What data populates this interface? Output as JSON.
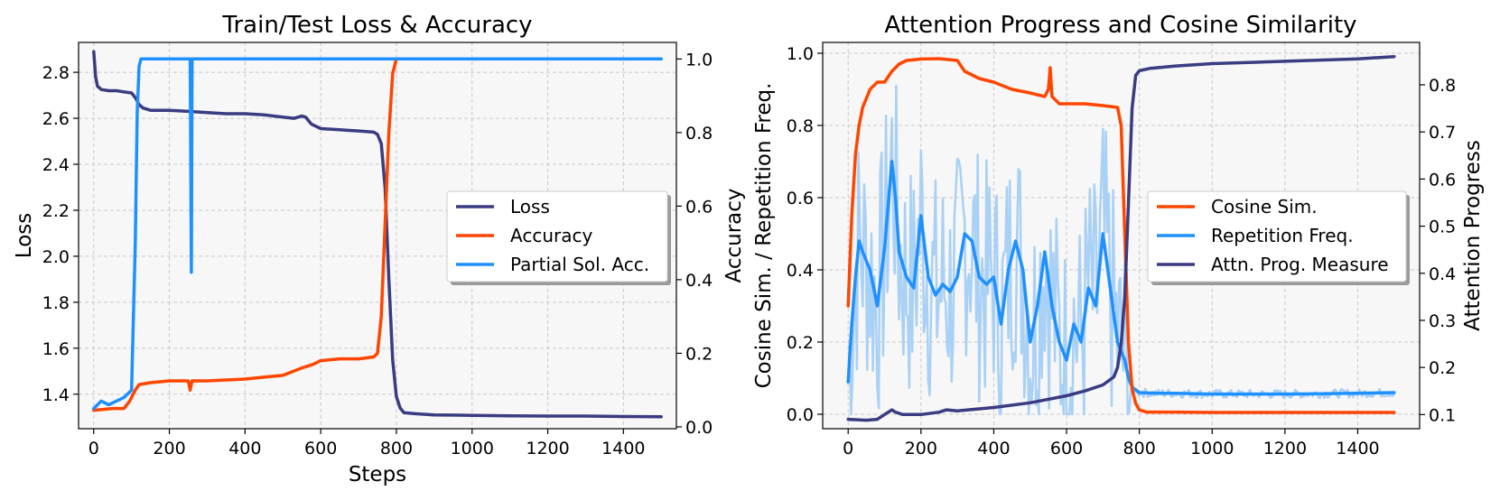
{
  "colors": {
    "loss": "#3b3b82",
    "accuracy": "#ff4500",
    "partial": "#1e90ff",
    "repetition_light": "#a9d0f5",
    "attn": "#3b3b82",
    "panel_bg": "#f7f7f7"
  },
  "chart_data": [
    {
      "type": "line",
      "title": "Train/Test Loss & Accuracy",
      "xlabel": "Steps",
      "ylabel": "Loss",
      "ylabel_right": "Accuracy",
      "xlim": [
        -40,
        1540
      ],
      "ylim": [
        1.25,
        2.93
      ],
      "ylim_right": [
        -0.005,
        1.045
      ],
      "xticks": [
        0,
        200,
        400,
        600,
        800,
        1000,
        1200,
        1400
      ],
      "yticks": [
        1.4,
        1.6,
        1.8,
        2.0,
        2.2,
        2.4,
        2.6,
        2.8
      ],
      "yticks_right": [
        0.0,
        0.2,
        0.4,
        0.6,
        0.8,
        1.0
      ],
      "grid": true,
      "legend": "center-right",
      "series": [
        {
          "name": "Loss",
          "axis": "left",
          "color_key": "loss",
          "x": [
            0,
            5,
            10,
            20,
            40,
            60,
            80,
            100,
            110,
            120,
            130,
            150,
            200,
            250,
            300,
            350,
            400,
            450,
            500,
            530,
            550,
            560,
            575,
            600,
            650,
            700,
            740,
            750,
            760,
            770,
            780,
            790,
            800,
            810,
            820,
            850,
            900,
            1000,
            1100,
            1200,
            1300,
            1400,
            1500
          ],
          "values": [
            2.89,
            2.78,
            2.74,
            2.725,
            2.72,
            2.72,
            2.715,
            2.71,
            2.69,
            2.66,
            2.645,
            2.635,
            2.635,
            2.63,
            2.625,
            2.62,
            2.62,
            2.615,
            2.605,
            2.6,
            2.61,
            2.605,
            2.575,
            2.555,
            2.55,
            2.545,
            2.54,
            2.53,
            2.49,
            2.3,
            1.9,
            1.55,
            1.39,
            1.34,
            1.32,
            1.315,
            1.31,
            1.308,
            1.306,
            1.305,
            1.305,
            1.303,
            1.302
          ]
        },
        {
          "name": "Accuracy",
          "axis": "right",
          "color_key": "accuracy",
          "x": [
            0,
            50,
            80,
            95,
            110,
            120,
            150,
            200,
            250,
            255,
            260,
            300,
            400,
            450,
            500,
            550,
            580,
            600,
            650,
            700,
            740,
            750,
            760,
            770,
            780,
            790,
            800,
            805
          ],
          "values": [
            0.045,
            0.05,
            0.05,
            0.07,
            0.1,
            0.115,
            0.12,
            0.125,
            0.125,
            0.1,
            0.125,
            0.125,
            0.13,
            0.135,
            0.14,
            0.16,
            0.17,
            0.18,
            0.185,
            0.185,
            0.19,
            0.2,
            0.3,
            0.55,
            0.8,
            0.96,
            1.0,
            1.0
          ]
        },
        {
          "name": "Partial Sol. Acc.",
          "axis": "right",
          "color_key": "partial",
          "x": [
            0,
            20,
            40,
            60,
            80,
            100,
            110,
            115,
            120,
            125,
            250,
            255,
            258,
            260,
            265,
            500,
            1000,
            1500
          ],
          "values": [
            0.05,
            0.07,
            0.06,
            0.07,
            0.08,
            0.1,
            0.5,
            0.85,
            0.98,
            1.0,
            1.0,
            1.0,
            0.42,
            1.0,
            1.0,
            1.0,
            1.0,
            1.0
          ]
        }
      ]
    },
    {
      "type": "line",
      "title": "Attention Progress and Cosine Similarity",
      "xlabel": "",
      "ylabel": "Cosine Sim. / Repetition Freq.",
      "ylabel_right": "Attention Progress",
      "xlim": [
        -70,
        1570
      ],
      "ylim": [
        -0.04,
        1.03
      ],
      "ylim_right": [
        0.07,
        0.89
      ],
      "xticks": [
        0,
        200,
        400,
        600,
        800,
        1000,
        1200,
        1400
      ],
      "yticks": [
        0.0,
        0.2,
        0.4,
        0.6,
        0.8,
        1.0
      ],
      "yticks_right": [
        0.1,
        0.2,
        0.3,
        0.4,
        0.5,
        0.6,
        0.7,
        0.8
      ],
      "grid": true,
      "legend": "center-right",
      "series": [
        {
          "name": "Cosine Sim.",
          "axis": "left",
          "color_key": "accuracy",
          "x": [
            0,
            10,
            20,
            30,
            40,
            60,
            80,
            100,
            120,
            140,
            160,
            180,
            200,
            250,
            300,
            320,
            340,
            360,
            400,
            450,
            500,
            540,
            550,
            555,
            560,
            570,
            580,
            600,
            650,
            700,
            740,
            750,
            760,
            770,
            780,
            790,
            800,
            820,
            900,
            1000,
            1100,
            1200,
            1300,
            1400,
            1500
          ],
          "values": [
            0.3,
            0.55,
            0.72,
            0.8,
            0.85,
            0.9,
            0.92,
            0.92,
            0.95,
            0.97,
            0.98,
            0.982,
            0.984,
            0.985,
            0.98,
            0.95,
            0.94,
            0.93,
            0.92,
            0.9,
            0.89,
            0.88,
            0.9,
            0.96,
            0.88,
            0.87,
            0.86,
            0.86,
            0.86,
            0.855,
            0.85,
            0.8,
            0.5,
            0.2,
            0.07,
            0.03,
            0.012,
            0.006,
            0.006,
            0.005,
            0.005,
            0.005,
            0.005,
            0.005,
            0.005
          ]
        },
        {
          "name": "Repetition Freq.",
          "axis": "left",
          "color_key": "partial",
          "x": [
            0,
            10,
            20,
            30,
            40,
            60,
            80,
            100,
            120,
            130,
            140,
            160,
            180,
            200,
            220,
            240,
            260,
            280,
            300,
            320,
            340,
            360,
            380,
            400,
            420,
            440,
            460,
            480,
            500,
            520,
            540,
            560,
            580,
            600,
            620,
            640,
            660,
            680,
            700,
            720,
            740,
            760,
            770,
            780,
            800,
            850,
            900,
            1000,
            1100,
            1200,
            1300,
            1400,
            1500
          ],
          "values": [
            0.09,
            0.25,
            0.38,
            0.48,
            0.45,
            0.4,
            0.3,
            0.46,
            0.7,
            0.6,
            0.45,
            0.38,
            0.35,
            0.55,
            0.38,
            0.33,
            0.36,
            0.34,
            0.38,
            0.5,
            0.48,
            0.38,
            0.36,
            0.38,
            0.25,
            0.4,
            0.48,
            0.4,
            0.2,
            0.3,
            0.45,
            0.3,
            0.2,
            0.15,
            0.25,
            0.2,
            0.35,
            0.3,
            0.5,
            0.35,
            0.2,
            0.15,
            0.1,
            0.075,
            0.06,
            0.058,
            0.058,
            0.056,
            0.056,
            0.056,
            0.057,
            0.058,
            0.06
          ]
        },
        {
          "name": "Attn. Prog. Measure",
          "axis": "right",
          "color_key": "attn",
          "x": [
            0,
            50,
            80,
            100,
            120,
            130,
            150,
            200,
            250,
            270,
            300,
            400,
            500,
            600,
            650,
            700,
            730,
            740,
            750,
            760,
            770,
            780,
            790,
            800,
            830,
            900,
            1000,
            1200,
            1400,
            1500
          ],
          "values": [
            0.09,
            0.088,
            0.09,
            0.1,
            0.11,
            0.105,
            0.1,
            0.1,
            0.105,
            0.11,
            0.108,
            0.115,
            0.125,
            0.14,
            0.15,
            0.163,
            0.18,
            0.2,
            0.25,
            0.35,
            0.55,
            0.75,
            0.82,
            0.83,
            0.835,
            0.84,
            0.845,
            0.85,
            0.855,
            0.86
          ]
        }
      ]
    }
  ]
}
